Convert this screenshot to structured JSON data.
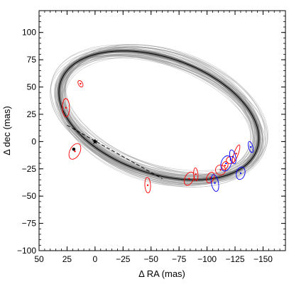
{
  "chart_data": {
    "type": "scatter",
    "title": "",
    "xlabel": "Δ RA (mas)",
    "ylabel": "Δ dec (mas)",
    "xlim": [
      50,
      -170
    ],
    "ylim": [
      -100,
      120
    ],
    "x_ticks": [
      50,
      25,
      0,
      -25,
      -50,
      -75,
      -100,
      -125,
      -150
    ],
    "y_ticks": [
      -100,
      -75,
      -50,
      -25,
      0,
      25,
      50,
      75,
      100
    ],
    "x_tick_labels": [
      "50",
      "25",
      "0",
      "−25",
      "−50",
      "−75",
      "−100",
      "−125",
      "−150"
    ],
    "y_tick_labels": [
      "−100",
      "−75",
      "−50",
      "−25",
      "0",
      "25",
      "50",
      "75",
      "100"
    ],
    "grid": false,
    "orbit_fan_count": 60,
    "best_fit_orbit": {
      "color": "#000000",
      "center": [
        -57,
        24
      ],
      "semi_axis_a": 93,
      "semi_axis_b": 53,
      "rotation_deg": 20
    },
    "star": {
      "x": 0,
      "y": 0,
      "marker": "star"
    },
    "periastron": {
      "x": 19,
      "y": -7
    },
    "line_of_nodes": {
      "from": [
        25,
        15
      ],
      "to": [
        -60,
        -34
      ],
      "style": "dashed"
    },
    "data_points": [
      {
        "x": 13,
        "y": 53,
        "color": "#ff0000"
      },
      {
        "x": 26,
        "y": 31,
        "color": "#ff0000"
      },
      {
        "x": 18,
        "y": -9,
        "color": "#ff0000"
      },
      {
        "x": -47,
        "y": -40,
        "color": "#ff0000"
      },
      {
        "x": -84,
        "y": -34,
        "color": "#ff0000"
      },
      {
        "x": -90,
        "y": -30,
        "color": "#ff0000"
      },
      {
        "x": -103,
        "y": -33,
        "color": "#ff0000"
      },
      {
        "x": -112,
        "y": -26,
        "color": "#ff0000"
      },
      {
        "x": -116,
        "y": -22,
        "color": "#ff0000"
      },
      {
        "x": -121,
        "y": -17,
        "color": "#ff0000"
      },
      {
        "x": -126,
        "y": -11,
        "color": "#ff0000"
      },
      {
        "x": -107,
        "y": -38,
        "color": "#0000ff"
      },
      {
        "x": -117,
        "y": -20,
        "color": "#0000ff"
      },
      {
        "x": -123,
        "y": -14,
        "color": "#0000ff"
      },
      {
        "x": -130,
        "y": -29,
        "color": "#0000ff"
      },
      {
        "x": -139,
        "y": -5,
        "color": "#0000ff"
      }
    ]
  }
}
